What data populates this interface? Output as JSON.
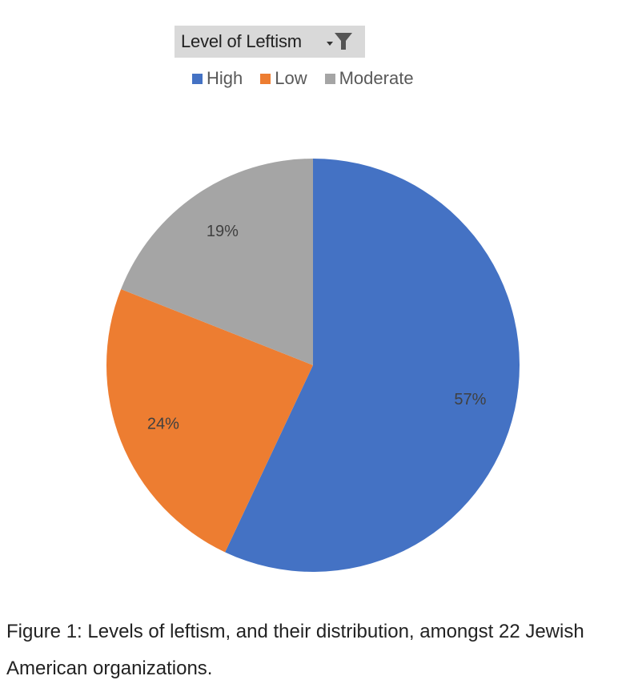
{
  "filter": {
    "label": "Level of Leftism",
    "icon": "filter-dropdown-icon"
  },
  "chart_data": {
    "type": "pie",
    "categories": [
      "High",
      "Low",
      "Moderate"
    ],
    "values": [
      57,
      24,
      19
    ],
    "data_labels": [
      "57%",
      "24%",
      "19%"
    ],
    "colors": [
      "#4472C4",
      "#ED7D31",
      "#A5A5A5"
    ],
    "legend": {
      "position": "top",
      "entries": [
        "High",
        "Low",
        "Moderate"
      ]
    },
    "start_angle": "12 o'clock",
    "direction": "clockwise"
  },
  "caption": "Figure 1: Levels of leftism, and their distribution, amongst 22 Jewish American organizations."
}
